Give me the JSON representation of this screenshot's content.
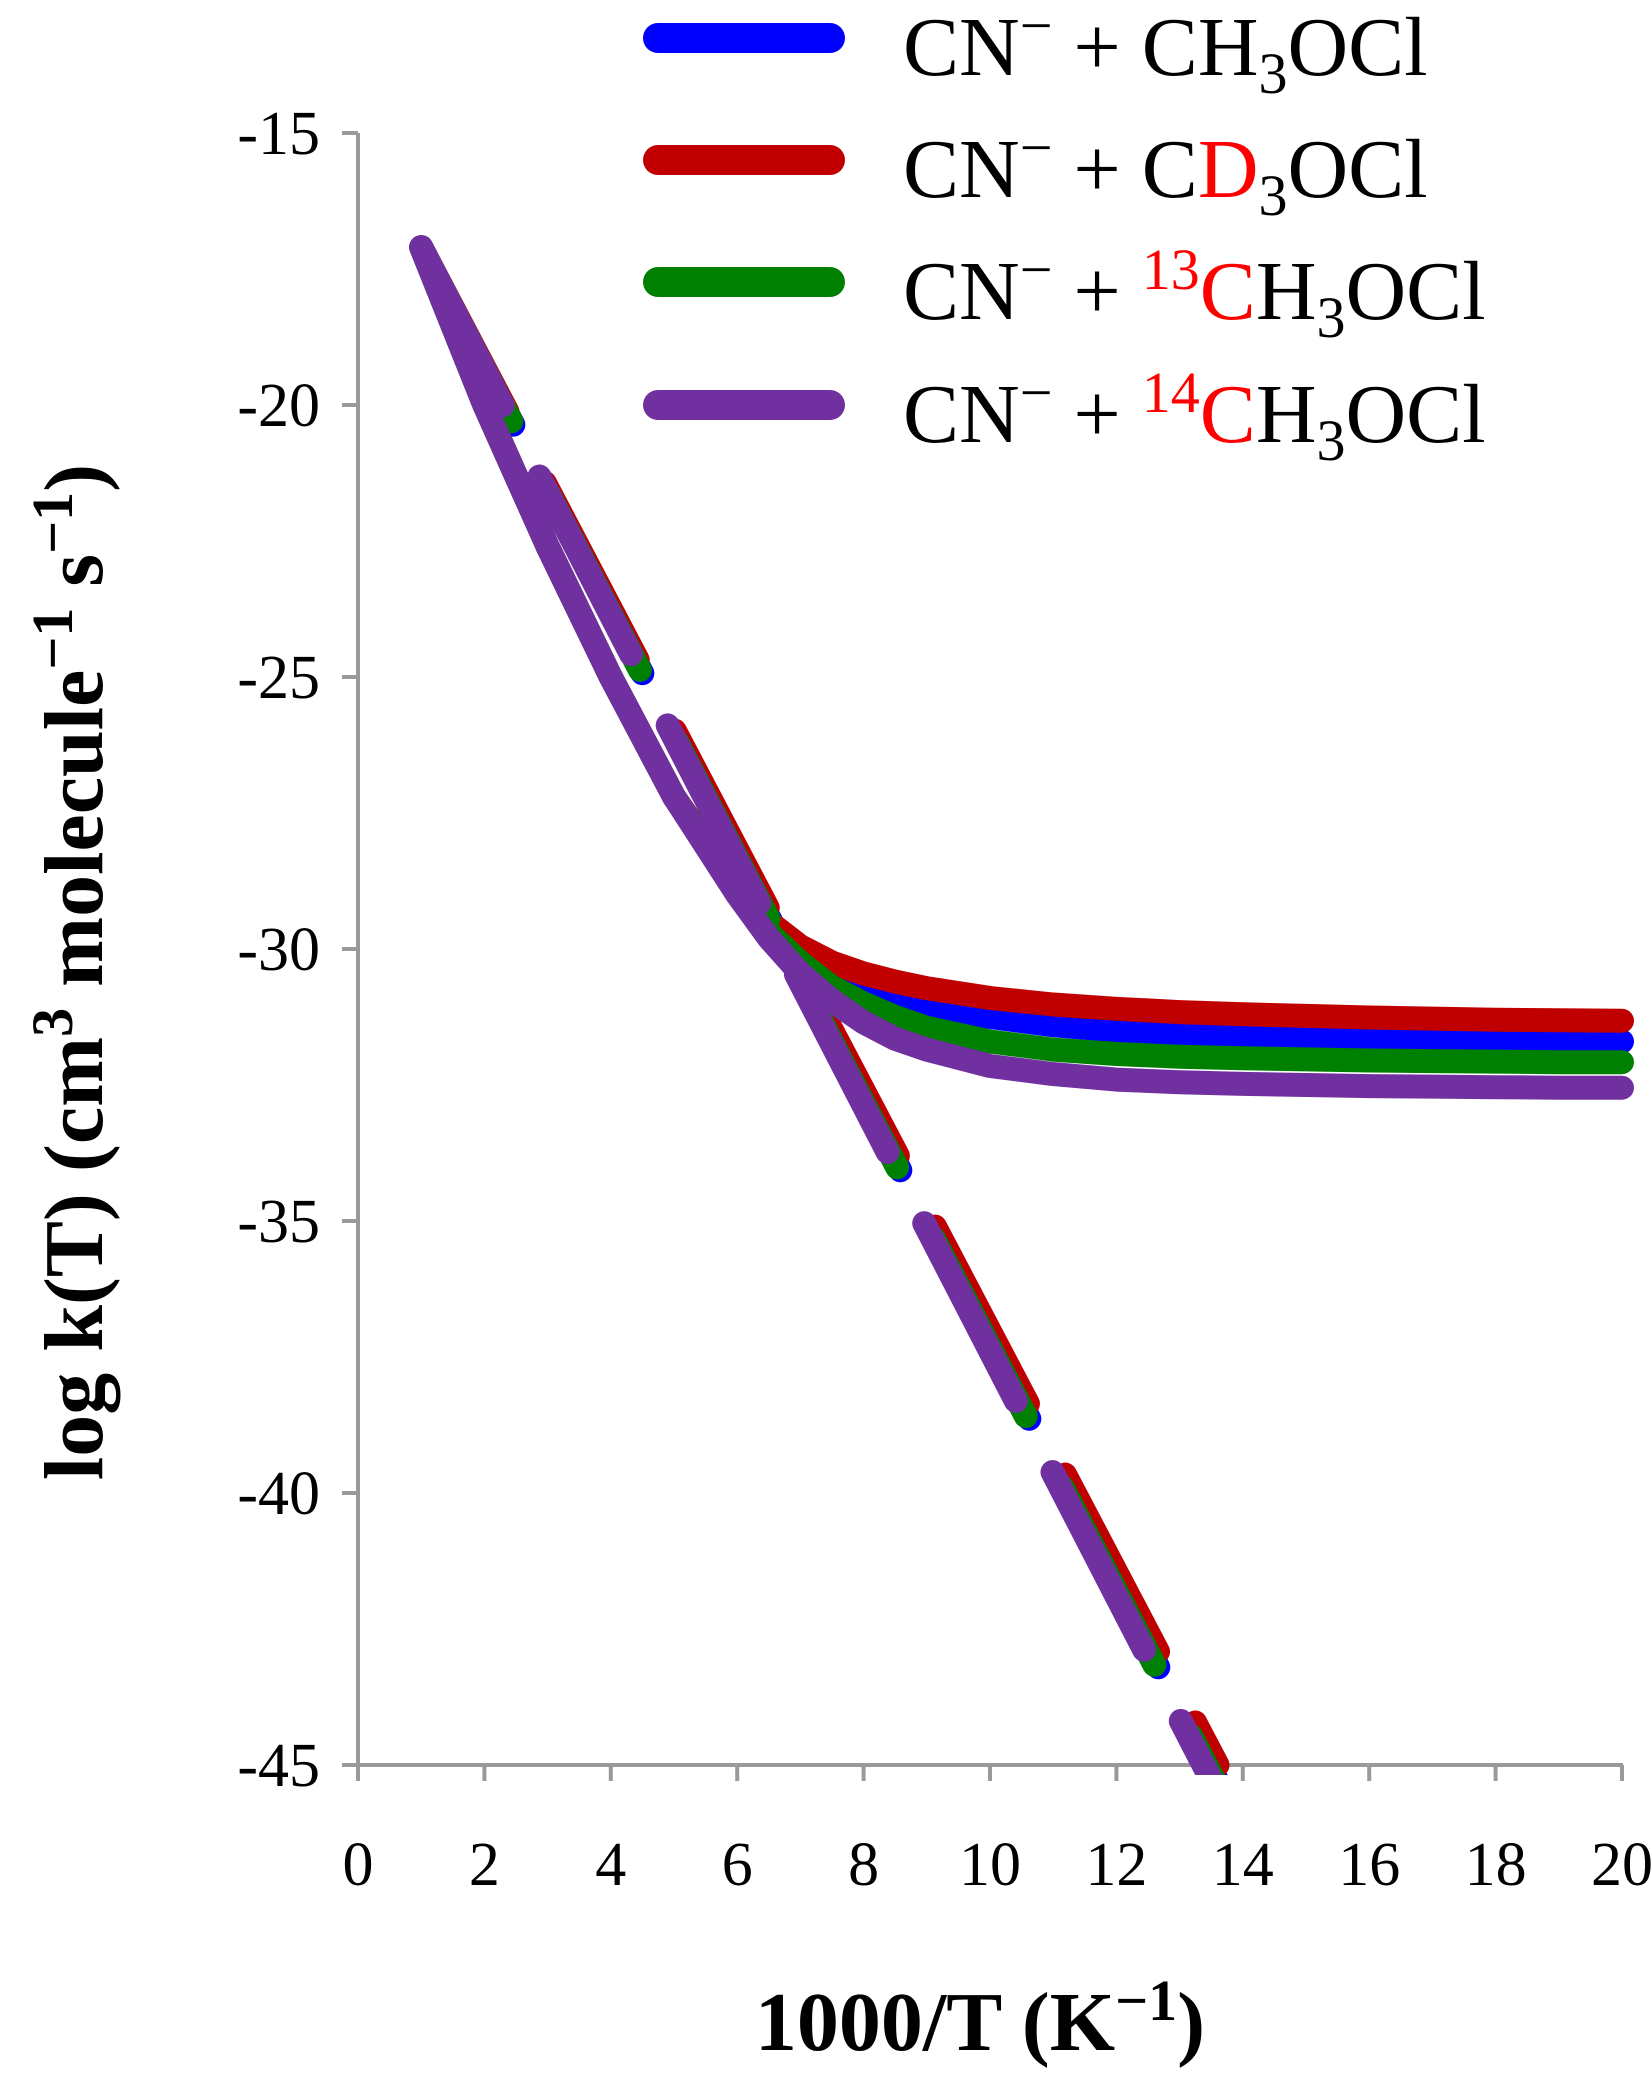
{
  "chart_data": {
    "type": "line",
    "title": "",
    "xlabel": {
      "main": "1000/T (K",
      "sup": "−1",
      "close": ")"
    },
    "ylabel": {
      "p1": "log k(T) (cm",
      "sup1": "3",
      "p2": " molecule",
      "sup2": "−1",
      "p3": " s",
      "sup3": "−1",
      "p4": ")"
    },
    "xlim": [
      0,
      20
    ],
    "ylim": [
      -45,
      -15
    ],
    "xticks": [
      0,
      2,
      4,
      6,
      8,
      10,
      12,
      14,
      16,
      18,
      20
    ],
    "yticks": [
      -15,
      -20,
      -25,
      -30,
      -35,
      -40,
      -45
    ],
    "grid": false,
    "legend_position": "top-right",
    "x_curve": [
      1,
      2,
      3,
      4,
      5,
      6,
      6.5,
      7,
      7.5,
      8,
      8.5,
      9,
      10,
      11,
      12,
      13,
      14,
      15,
      16,
      17,
      18,
      19,
      20
    ],
    "x_dashed": [
      1,
      13.6
    ],
    "series": [
      {
        "name": "CN− + CH3OCl",
        "legend": {
          "pre": "CN",
          "sup_minus": "−",
          "mid": " + C",
          "red": "",
          "red_sup": "",
          "h": "H",
          "sub": "3",
          "tail": "OCl"
        },
        "color": "#0000ff",
        "solid_y": [
          -17.1,
          -20.0,
          -22.6,
          -25.0,
          -27.2,
          -28.9,
          -29.6,
          -30.1,
          -30.45,
          -30.7,
          -30.9,
          -31.05,
          -31.25,
          -31.4,
          -31.5,
          -31.55,
          -31.6,
          -31.62,
          -31.64,
          -31.66,
          -31.67,
          -31.68,
          -31.7
        ],
        "dashed_y": [
          -17.1,
          -45.3
        ]
      },
      {
        "name": "CN− + CD3OCl",
        "legend": {
          "pre": "CN",
          "sup_minus": "−",
          "mid": " + C",
          "red": "D",
          "red_sup": "",
          "h": "",
          "sub": "3",
          "tail": "OCl"
        },
        "color": "#c00000",
        "solid_y": [
          -17.1,
          -20.0,
          -22.6,
          -25.0,
          -27.2,
          -28.9,
          -29.5,
          -29.95,
          -30.25,
          -30.45,
          -30.6,
          -30.72,
          -30.9,
          -31.02,
          -31.1,
          -31.16,
          -31.2,
          -31.23,
          -31.26,
          -31.28,
          -31.3,
          -31.31,
          -31.32
        ],
        "dashed_y": [
          -17.1,
          -45.0
        ]
      },
      {
        "name": "CN− + 13CH3OCl",
        "legend": {
          "pre": "CN",
          "sup_minus": "−",
          "mid": " + ",
          "red": "C",
          "red_sup": "13",
          "h": "H",
          "sub": "3",
          "tail": "OCl"
        },
        "color": "#008000",
        "solid_y": [
          -17.1,
          -20.0,
          -22.6,
          -25.0,
          -27.2,
          -28.95,
          -29.7,
          -30.25,
          -30.7,
          -31.0,
          -31.25,
          -31.45,
          -31.7,
          -31.85,
          -31.93,
          -31.98,
          -32.01,
          -32.03,
          -32.05,
          -32.06,
          -32.07,
          -32.08,
          -32.08
        ],
        "dashed_y": [
          -17.1,
          -45.4
        ]
      },
      {
        "name": "CN− + 14CH3OCl",
        "legend": {
          "pre": "CN",
          "sup_minus": "−",
          "mid": " + ",
          "red": "C",
          "red_sup": "14",
          "h": "H",
          "sub": "3",
          "tail": "OCl"
        },
        "color": "#7030a0",
        "solid_y": [
          -17.1,
          -20.0,
          -22.6,
          -25.0,
          -27.2,
          -29.0,
          -29.8,
          -30.45,
          -30.95,
          -31.35,
          -31.65,
          -31.85,
          -32.15,
          -32.3,
          -32.4,
          -32.45,
          -32.48,
          -32.5,
          -32.52,
          -32.53,
          -32.54,
          -32.55,
          -32.55
        ],
        "dashed_y": [
          -17.1,
          -45.5
        ]
      }
    ]
  }
}
